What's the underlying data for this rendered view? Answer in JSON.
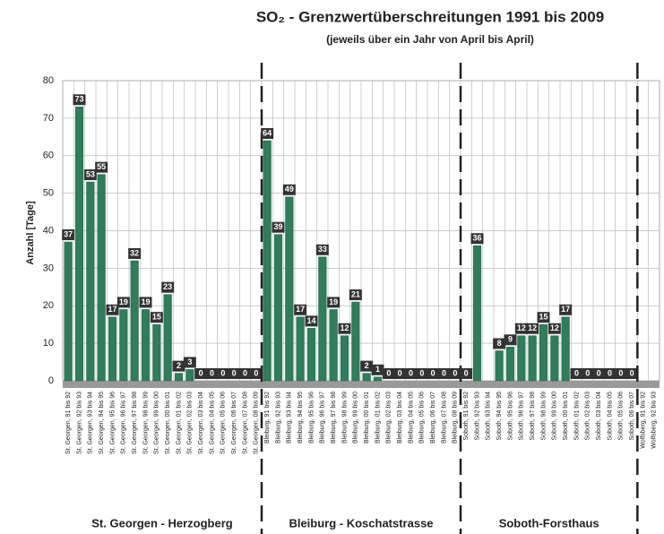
{
  "chart_data": {
    "type": "bar",
    "title": "SO₂ - Grenzwertüberschreitungen 1991 bis 2009",
    "subtitle": "(jeweils über ein Jahr von April bis April)",
    "y_label": "Anzahl [Tage]",
    "color": "#2e7d5b",
    "ylim": [
      0,
      80
    ],
    "yticks": [
      0,
      10,
      20,
      30,
      40,
      50,
      60,
      70,
      80
    ],
    "grid": true,
    "groups": [
      {
        "name": "St. Georgen - Herzogberg",
        "categories": [
          "St. Georgen, 91 bis 92",
          "St. Georgen, 92 bis 93",
          "St. Georgen, 93 bis 94",
          "St. Georgen, 94 bis 95",
          "St. Georgen, 95 bis 96",
          "St. Georgen, 96 bis 97",
          "St. Georgen, 97 bis 98",
          "St. Georgen, 98 bis 99",
          "St. Georgen, 99 bis 00",
          "St. Georgen, 00 bis 01",
          "St. Georgen, 01 bis 02",
          "St. Georgen, 02 bis 03",
          "St. Georgen, 03 bis 04",
          "St. Georgen, 04 bis 05",
          "St. Georgen, 05 bis 06",
          "St. Georgen, 06 bis 07",
          "St. Georgen, 07 bis 08",
          "St. Georgen, 08 bis 09"
        ],
        "values": [
          37,
          73,
          53,
          55,
          17,
          19,
          32,
          19,
          15,
          23,
          2,
          3,
          0,
          0,
          0,
          0,
          0,
          0
        ]
      },
      {
        "name": "Bleiburg - Koschatstrasse",
        "categories": [
          "Bleiburg, 91 bis 92",
          "Bleiburg, 92 bis 93",
          "Bleiburg, 93 bis 94",
          "Bleiburg, 94 bis 95",
          "Bleiburg, 95 bis 96",
          "Bleiburg, 96 bis 97",
          "Bleiburg, 97 bis 98",
          "Bleiburg, 98 bis 99",
          "Bleiburg, 99 bis 00",
          "Bleiburg, 00 bis 01",
          "Bleiburg, 01 bis 02",
          "Bleiburg, 02 bis 03",
          "Bleiburg, 03 bis 04",
          "Bleiburg, 04 bis 05",
          "Bleiburg, 05 bis 06",
          "Bleiburg, 06 bis 07",
          "Bleiburg, 07 bis 08",
          "Bleiburg, 08 bis 09"
        ],
        "values": [
          64,
          39,
          49,
          17,
          14,
          33,
          19,
          12,
          21,
          2,
          1,
          0,
          0,
          0,
          0,
          0,
          0,
          0
        ]
      },
      {
        "name": "Soboth-Forsthaus",
        "categories": [
          "Soboth, 91 bis 92",
          "Soboth, 92 bis 93",
          "Soboth, 93 bis 94",
          "Soboth, 94 bis 95",
          "Soboth, 95 bis 96",
          "Soboth, 96 bis 97",
          "Soboth, 97 bis 98",
          "Soboth, 98 bis 99",
          "Soboth, 99 bis 00",
          "Soboth, 00 bis 01",
          "Soboth, 01 bis 02",
          "Soboth, 02 bis 03",
          "Soboth, 03 bis 04",
          "Soboth, 04 bis 05",
          "Soboth, 05 bis 06",
          "Soboth, 06 bis 07"
        ],
        "values": [
          0,
          36,
          null,
          8,
          9,
          12,
          12,
          15,
          12,
          17,
          0,
          0,
          0,
          0,
          0,
          0
        ]
      },
      {
        "categories": [
          "Wolfsberg, 91 bis 92",
          "Wolfsberg, 92 bis 93"
        ],
        "values": [
          null,
          null
        ]
      }
    ]
  }
}
